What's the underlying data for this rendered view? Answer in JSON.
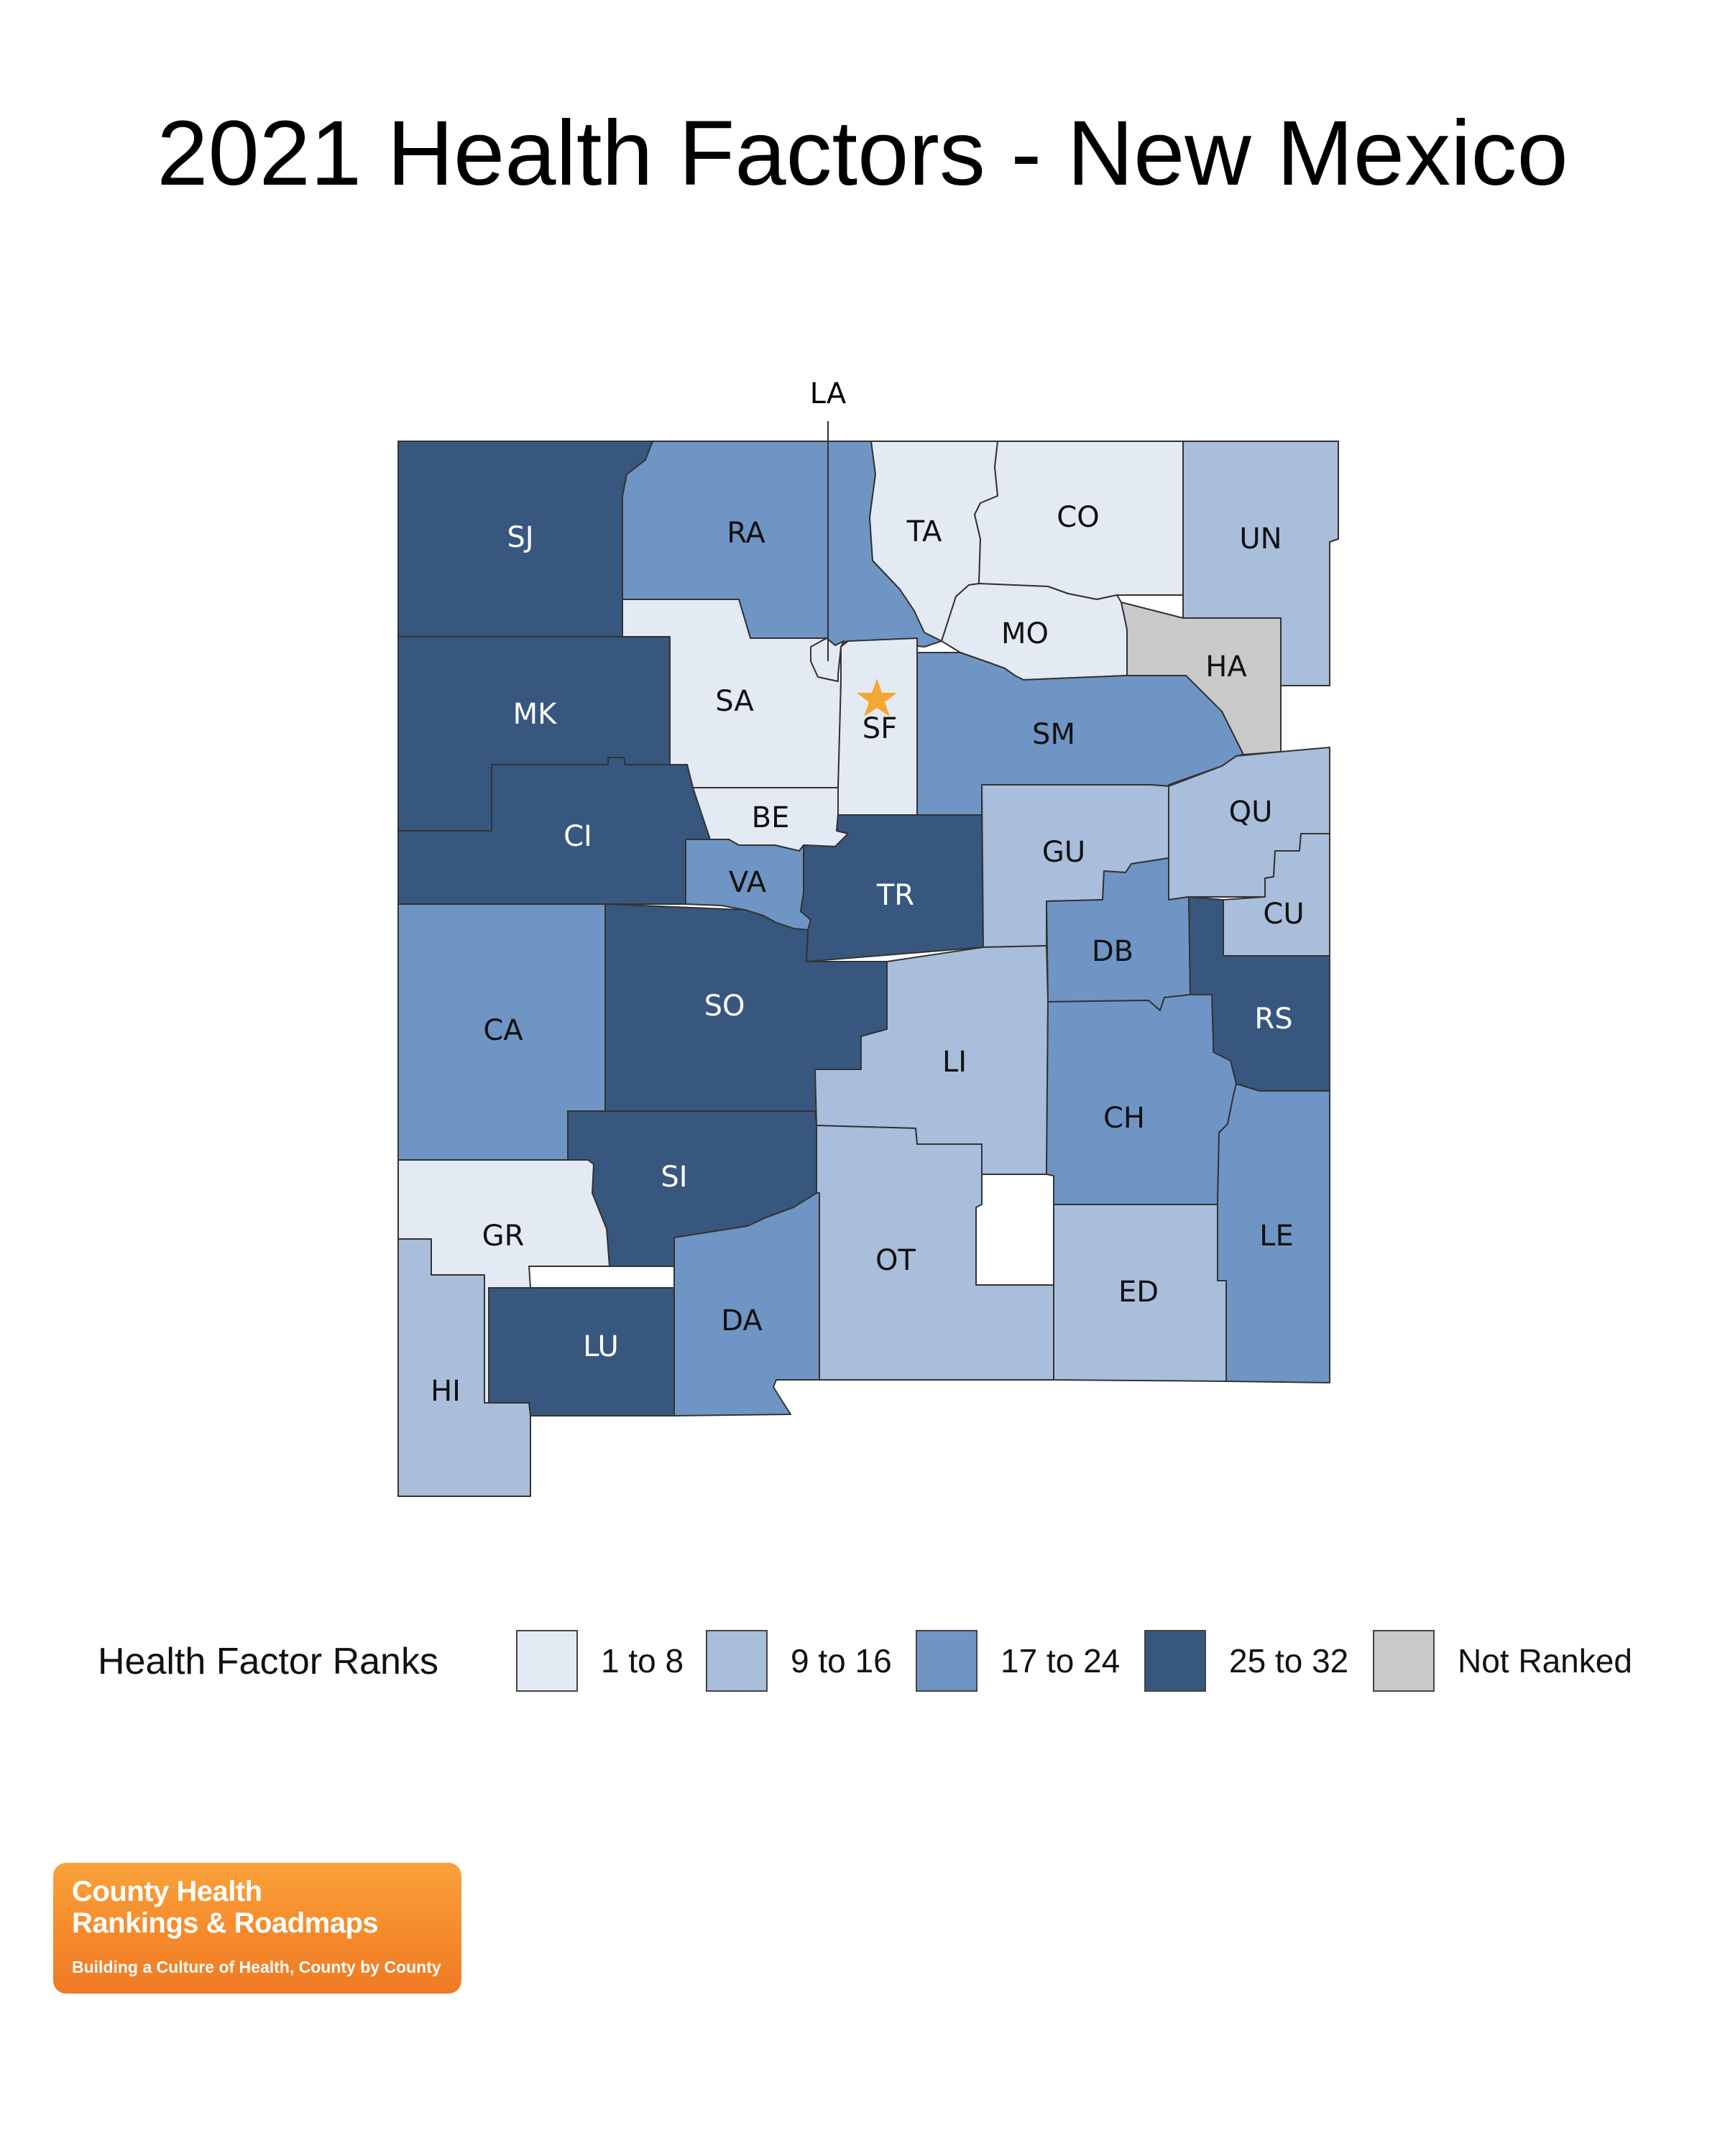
{
  "title": "2021 Health Factors - New Mexico",
  "colors": {
    "1 to 8": "#e3eaf4",
    "9 to 16": "#a9bedb",
    "17 to 24": "#6f95c4",
    "25 to 32": "#38577f",
    "Not Ranked": "#c9c9c9",
    "star": "#f3a833"
  },
  "legend": {
    "title": "Health Factor Ranks",
    "items": [
      {
        "label": "1 to 8",
        "class": "1 to 8"
      },
      {
        "label": "9 to 16",
        "class": "9 to 16"
      },
      {
        "label": "17 to 24",
        "class": "17 to 24"
      },
      {
        "label": "25 to 32",
        "class": "25 to 32"
      },
      {
        "label": "Not Ranked",
        "class": "Not Ranked"
      }
    ]
  },
  "counties": [
    {
      "code": "SJ",
      "rank_class": "25 to 32"
    },
    {
      "code": "RA",
      "rank_class": "17 to 24"
    },
    {
      "code": "TA",
      "rank_class": "1 to 8"
    },
    {
      "code": "CO",
      "rank_class": "1 to 8"
    },
    {
      "code": "UN",
      "rank_class": "9 to 16"
    },
    {
      "code": "MO",
      "rank_class": "1 to 8"
    },
    {
      "code": "HA",
      "rank_class": "Not Ranked"
    },
    {
      "code": "MK",
      "rank_class": "25 to 32"
    },
    {
      "code": "SA",
      "rank_class": "1 to 8"
    },
    {
      "code": "SF",
      "rank_class": "1 to 8"
    },
    {
      "code": "LA",
      "rank_class": "1 to 8"
    },
    {
      "code": "SM",
      "rank_class": "17 to 24"
    },
    {
      "code": "CI",
      "rank_class": "25 to 32"
    },
    {
      "code": "BE",
      "rank_class": "1 to 8"
    },
    {
      "code": "VA",
      "rank_class": "17 to 24"
    },
    {
      "code": "TR",
      "rank_class": "25 to 32"
    },
    {
      "code": "GU",
      "rank_class": "9 to 16"
    },
    {
      "code": "QU",
      "rank_class": "9 to 16"
    },
    {
      "code": "CU",
      "rank_class": "9 to 16"
    },
    {
      "code": "DB",
      "rank_class": "17 to 24"
    },
    {
      "code": "RS",
      "rank_class": "25 to 32"
    },
    {
      "code": "CA",
      "rank_class": "17 to 24"
    },
    {
      "code": "SO",
      "rank_class": "25 to 32"
    },
    {
      "code": "LI",
      "rank_class": "9 to 16"
    },
    {
      "code": "CH",
      "rank_class": "17 to 24"
    },
    {
      "code": "SI",
      "rank_class": "25 to 32"
    },
    {
      "code": "GR",
      "rank_class": "1 to 8"
    },
    {
      "code": "OT",
      "rank_class": "9 to 16"
    },
    {
      "code": "LE",
      "rank_class": "17 to 24"
    },
    {
      "code": "ED",
      "rank_class": "9 to 16"
    },
    {
      "code": "LU",
      "rank_class": "25 to 32"
    },
    {
      "code": "DA",
      "rank_class": "17 to 24"
    },
    {
      "code": "HI",
      "rank_class": "9 to 16"
    }
  ],
  "capital_county": "SF",
  "logo": {
    "line1": "County Health",
    "line2": "Rankings & Roadmaps",
    "tagline": "Building a Culture of Health, County by County"
  }
}
